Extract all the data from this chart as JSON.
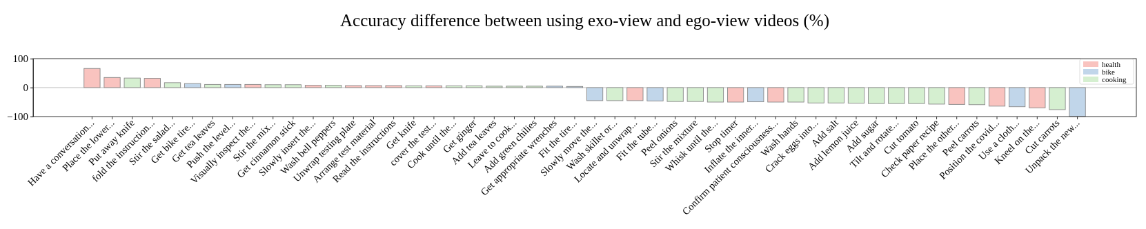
{
  "chart_data": {
    "type": "bar",
    "title": "Accuracy difference between using exo-view and ego-view videos (%)",
    "categories": [
      "Have a conversation...",
      "Place the lower...",
      "Put away knife",
      "fold the instruction...",
      "Stir the salad...",
      "Get bike tire...",
      "Get tea leaves",
      "Push the level...",
      "Visually inspect the...",
      "Stir the mix...",
      "Get cinnamon stick",
      "Slowly insert the...",
      "Wash bell peppers",
      "Unwrap testing plate",
      "Arrange test material",
      "Read the instructions",
      "Get knife",
      "cover the test...",
      "Cook until the...",
      "Get ginger",
      "Add tea leaves",
      "Leave to cook...",
      "Add green chilies",
      "Get appropriate wrenches",
      "Fit the tire...",
      "Slowly move the...",
      "Wash skillet or...",
      "Locate and unwrap...",
      "Fit the tube...",
      "Peel onions",
      "Stir the mixture",
      "Whisk until the...",
      "Stop timer",
      "Inflate the inner...",
      "Confirm patient consciousness...",
      "Wash hands",
      "Crack eggs into...",
      "Add salt",
      "Add lemon juice",
      "Add sugar",
      "Tilt and rotate...",
      "Cut tomato",
      "Check paper recipe",
      "Place the other...",
      "Peel carrots",
      "Position the covid...",
      "Use a cloth...",
      "Kneel on the...",
      "Cut carrots",
      "Unpack the new..."
    ],
    "stacked": true,
    "series": [
      {
        "name": "health",
        "color": "#f9c3bf",
        "values": [
          66,
          35,
          null,
          32,
          null,
          null,
          null,
          null,
          11,
          null,
          null,
          8,
          null,
          7,
          7,
          7,
          null,
          6,
          null,
          null,
          null,
          null,
          null,
          null,
          null,
          null,
          null,
          -45,
          null,
          null,
          null,
          null,
          -50,
          null,
          -50,
          null,
          null,
          null,
          null,
          null,
          null,
          null,
          null,
          -58,
          null,
          -64,
          null,
          -70,
          null,
          null
        ]
      },
      {
        "name": "bike",
        "color": "#c1d6ea",
        "values": [
          null,
          null,
          null,
          null,
          null,
          14,
          null,
          11,
          null,
          null,
          null,
          null,
          null,
          null,
          null,
          null,
          null,
          null,
          null,
          null,
          null,
          null,
          null,
          5,
          4,
          -45,
          null,
          null,
          -46,
          null,
          null,
          null,
          null,
          -49,
          null,
          null,
          null,
          null,
          null,
          null,
          null,
          null,
          null,
          null,
          null,
          null,
          -66,
          null,
          null,
          -100
        ]
      },
      {
        "name": "cooking",
        "color": "#d5efd0",
        "values": [
          null,
          null,
          33,
          null,
          17,
          null,
          11,
          null,
          null,
          10,
          10,
          null,
          8,
          null,
          null,
          null,
          6,
          null,
          6,
          6,
          5,
          5,
          5,
          null,
          null,
          null,
          -45,
          null,
          null,
          -48,
          -48,
          -50,
          null,
          null,
          null,
          -50,
          -53,
          -53,
          -54,
          -55,
          -55,
          -55,
          -57,
          null,
          -59,
          null,
          null,
          null,
          -76,
          null
        ]
      }
    ],
    "ylim": [
      -100,
      100
    ],
    "yticks": [
      -100,
      0,
      100
    ],
    "ref_lines": [
      {
        "axis": "y",
        "value": 0,
        "color": "#bbbbbb"
      }
    ],
    "legend": "top right"
  }
}
